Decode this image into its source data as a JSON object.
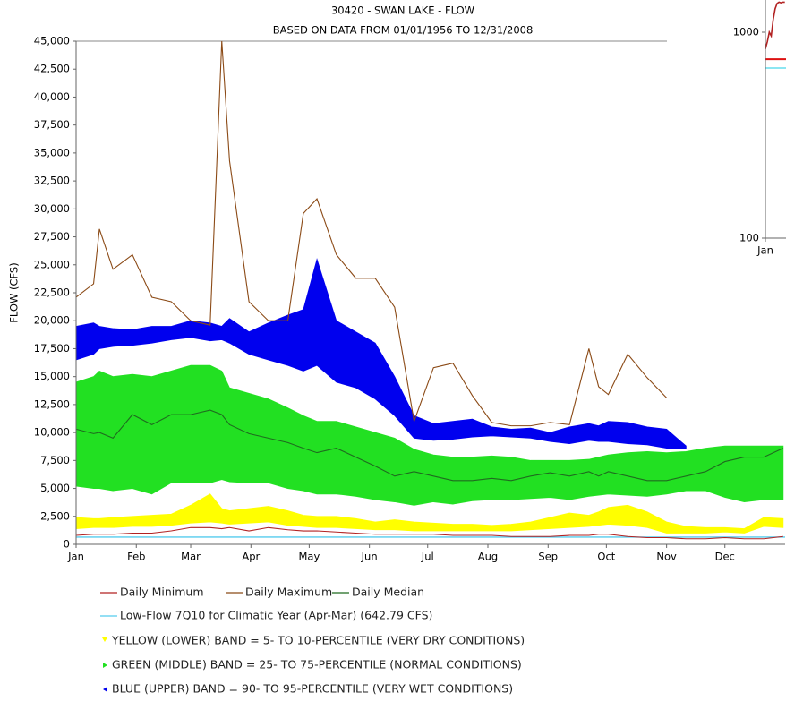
{
  "chart_data": [
    {
      "type": "line",
      "title": "30420 - SWAN LAKE - FLOW",
      "subtitle": "BASED ON DATA FROM 01/01/1956 TO 12/31/2008",
      "ylabel": "FLOW (CFS)",
      "x": [
        1,
        10,
        13,
        20,
        30,
        40,
        50,
        60,
        70,
        76,
        80,
        90,
        100,
        110,
        118,
        125,
        135,
        145,
        155,
        165,
        175,
        185,
        195,
        205,
        215,
        225,
        235,
        245,
        255,
        265,
        270,
        275,
        285,
        295,
        305,
        315,
        325,
        335,
        345,
        355,
        365
      ],
      "xlim": [
        1,
        366
      ],
      "xticks": [
        {
          "value": 1,
          "label": "Jan"
        },
        {
          "value": 32,
          "label": "Feb"
        },
        {
          "value": 60,
          "label": "Mar"
        },
        {
          "value": 91,
          "label": "Apr"
        },
        {
          "value": 121,
          "label": "May"
        },
        {
          "value": 152,
          "label": "Jun"
        },
        {
          "value": 182,
          "label": "Jul"
        },
        {
          "value": 213,
          "label": "Aug"
        },
        {
          "value": 244,
          "label": "Sep"
        },
        {
          "value": 274,
          "label": "Oct"
        },
        {
          "value": 305,
          "label": "Nov"
        },
        {
          "value": 335,
          "label": "Dec"
        }
      ],
      "ylim": [
        0,
        45000
      ],
      "yticks": [
        0,
        {
          "value": 2500,
          "label": "2,500"
        },
        {
          "value": 5000,
          "label": "5,000"
        },
        {
          "value": 7500,
          "label": "7,500"
        },
        {
          "value": 10000,
          "label": "10,000"
        },
        {
          "value": 12500,
          "label": "12,500"
        },
        {
          "value": 15000,
          "label": "15,000"
        },
        {
          "value": 17500,
          "label": "17,500"
        },
        {
          "value": 20000,
          "label": "20,000"
        },
        {
          "value": 22500,
          "label": "22,500"
        },
        {
          "value": 25000,
          "label": "25,000"
        },
        {
          "value": 27500,
          "label": "27,500"
        },
        {
          "value": 30000,
          "label": "30,000"
        },
        {
          "value": 32500,
          "label": "32,500"
        },
        {
          "value": 35000,
          "label": "35,000"
        },
        {
          "value": 37500,
          "label": "37,500"
        },
        {
          "value": 40000,
          "label": "40,000"
        },
        {
          "value": 42500,
          "label": "42,500"
        },
        {
          "value": 45000,
          "label": "45,000"
        }
      ],
      "bands": [
        {
          "name": "YELLOW (LOWER) BAND = 5- TO 10-PERCENTILE (VERY DRY CONDITIONS)",
          "color": "#ffff00",
          "lower": [
            1400,
            1500,
            1500,
            1500,
            1600,
            1600,
            1700,
            1900,
            2000,
            1900,
            1800,
            1900,
            2000,
            1700,
            1600,
            1500,
            1500,
            1400,
            1300,
            1300,
            1200,
            1200,
            1200,
            1200,
            1200,
            1200,
            1300,
            1400,
            1500,
            1600,
            1700,
            1800,
            1700,
            1500,
            1000,
            1000,
            1000,
            1100,
            1000,
            1600,
            1500
          ],
          "upper": [
            2400,
            2300,
            2300,
            2400,
            2500,
            2600,
            2700,
            3500,
            4500,
            3200,
            3000,
            3200,
            3400,
            3000,
            2600,
            2500,
            2500,
            2300,
            2000,
            2200,
            2000,
            1900,
            1800,
            1800,
            1700,
            1800,
            2000,
            2400,
            2800,
            2600,
            2900,
            3300,
            3500,
            2900,
            2000,
            1600,
            1500,
            1500,
            1400,
            2400,
            2300
          ]
        },
        {
          "name": "GREEN (MIDDLE) BAND = 25- TO 75-PERCENTILE (NORMAL CONDITIONS)",
          "color": "#22e022",
          "lower": [
            5200,
            5000,
            5000,
            4800,
            5000,
            4500,
            5500,
            5500,
            5500,
            5800,
            5600,
            5500,
            5500,
            5000,
            4800,
            4500,
            4500,
            4300,
            4000,
            3800,
            3500,
            3800,
            3600,
            3900,
            4000,
            4000,
            4100,
            4200,
            4000,
            4300,
            4400,
            4500,
            4400,
            4300,
            4500,
            4800,
            4800,
            4200,
            3800,
            4000,
            4000
          ],
          "upper": [
            14500,
            15000,
            15500,
            15000,
            15200,
            15000,
            15500,
            16000,
            16000,
            15500,
            14000,
            13500,
            13000,
            12200,
            11500,
            11000,
            11000,
            10500,
            10000,
            9500,
            8500,
            8000,
            7800,
            7800,
            7900,
            7800,
            7500,
            7500,
            7500,
            7600,
            7800,
            8000,
            8200,
            8300,
            8200,
            8300,
            8600,
            8800,
            8800,
            8800,
            8800
          ]
        },
        {
          "name": "BLUE (UPPER) BAND = 90- TO 95-PERCENTILE (VERY WET CONDITIONS)",
          "color": "#0000ee",
          "lower": [
            16500,
            17000,
            17500,
            17700,
            17800,
            18000,
            18300,
            18500,
            18200,
            18300,
            18000,
            17000,
            16500,
            16000,
            15500,
            16000,
            14500,
            14000,
            13000,
            11500,
            9500,
            9300,
            9400,
            9600,
            9700,
            9600,
            9500,
            9200,
            9000,
            9300,
            9200,
            9200,
            9000,
            8900,
            8600,
            8600,
            null,
            null,
            null,
            null,
            null
          ],
          "upper": [
            19500,
            19800,
            19500,
            19300,
            19200,
            19500,
            19500,
            20000,
            19800,
            19500,
            20200,
            19000,
            19800,
            20500,
            21000,
            25500,
            20000,
            19000,
            18000,
            15000,
            11500,
            10800,
            11000,
            11200,
            10500,
            10300,
            10400,
            10000,
            10500,
            10800,
            10600,
            11000,
            10900,
            10500,
            10300,
            8800,
            null,
            null,
            null,
            null,
            null
          ]
        }
      ],
      "reference_lines": [
        {
          "name": "Low-Flow 7Q10 for Climatic Year (Apr-Mar) (642.79 CFS)",
          "color": "#55ccee",
          "value": 642.79
        }
      ],
      "series": [
        {
          "name": "Daily Minimum",
          "color": "#b22222",
          "values": [
            800,
            900,
            900,
            900,
            1000,
            1000,
            1200,
            1500,
            1500,
            1400,
            1500,
            1200,
            1500,
            1300,
            1200,
            1200,
            1100,
            1000,
            900,
            900,
            900,
            900,
            800,
            800,
            800,
            700,
            700,
            700,
            800,
            800,
            900,
            900,
            700,
            600,
            600,
            500,
            500,
            600,
            500,
            500,
            700
          ]
        },
        {
          "name": "Daily Maximum",
          "color": "#8b4a16",
          "values": [
            22100,
            23300,
            28200,
            24600,
            25900,
            22100,
            21700,
            20000,
            19600,
            45000,
            34300,
            21700,
            20000,
            20000,
            29600,
            30900,
            25900,
            23800,
            23800,
            21200,
            11000,
            15800,
            16200,
            13300,
            10900,
            10600,
            10600,
            10900,
            10700,
            17500,
            14100,
            13400,
            17000,
            14900,
            13100,
            null,
            null,
            null,
            null,
            null,
            null
          ]
        },
        {
          "name": "Daily Median",
          "color": "#1f6b1f",
          "values": [
            10300,
            9900,
            10000,
            9500,
            11600,
            10700,
            11600,
            11600,
            12000,
            11600,
            10700,
            9900,
            9500,
            9100,
            8600,
            8200,
            8600,
            7800,
            7000,
            6100,
            6500,
            6100,
            5700,
            5700,
            5900,
            5700,
            6100,
            6400,
            6100,
            6500,
            6100,
            6500,
            6100,
            5700,
            5700,
            6100,
            6500,
            7400,
            7800,
            7800,
            8600
          ]
        }
      ]
    },
    {
      "type": "line",
      "log_scale": true,
      "x": [
        1,
        2,
        3,
        4,
        5,
        6,
        7,
        8,
        9,
        10,
        11
      ],
      "xlim": [
        1,
        11.6
      ],
      "xticks": [
        {
          "value": 1,
          "label": "Jan"
        }
      ],
      "ylim": [
        100,
        1434
      ],
      "yticks": [
        100,
        1000
      ],
      "reference_lines": [
        {
          "color": "#dd1111",
          "value": 740
        },
        {
          "color": "#66ddee",
          "value": 670
        }
      ],
      "series": [
        {
          "color": "#b22222",
          "values": [
            830,
            900,
            1000,
            960,
            1150,
            1300,
            1380,
            1400,
            1390,
            1400,
            1400
          ]
        }
      ]
    }
  ]
}
